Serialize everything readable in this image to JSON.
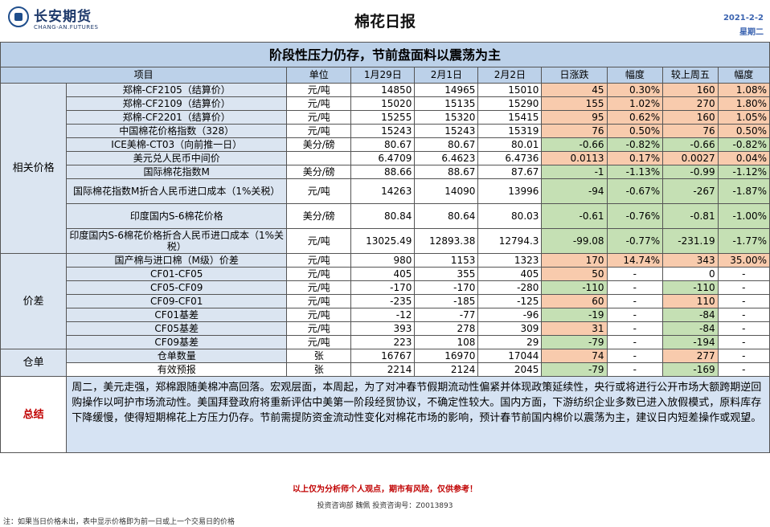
{
  "header": {
    "company_cn": "长安期货",
    "company_en": "CHANG-AN.FUTURES",
    "title": "棉花日报",
    "date": "2021-2-2",
    "weekday": "星期二"
  },
  "subtitle": "阶段性压力仍存，节前盘面料以震荡为主",
  "columns": [
    "项目",
    "单位",
    "1月29日",
    "2月1日",
    "2月2日",
    "日涨跌",
    "幅度",
    "较上周五",
    "幅度"
  ],
  "groups": {
    "related": "相关价格",
    "spread": "价差",
    "warehouse": "仓单",
    "summary": "总结"
  },
  "rows": [
    {
      "item": "郑棉-CF2105（结算价）",
      "unit": "元/吨",
      "d1": "14850",
      "d2": "14965",
      "d3": "15010",
      "chg": "45",
      "pct": "0.30%",
      "wk": "160",
      "wkpct": "1.08%"
    },
    {
      "item": "郑棉-CF2109（结算价）",
      "unit": "元/吨",
      "d1": "15020",
      "d2": "15135",
      "d3": "15290",
      "chg": "155",
      "pct": "1.02%",
      "wk": "270",
      "wkpct": "1.80%"
    },
    {
      "item": "郑棉-CF2201（结算价）",
      "unit": "元/吨",
      "d1": "15255",
      "d2": "15320",
      "d3": "15415",
      "chg": "95",
      "pct": "0.62%",
      "wk": "160",
      "wkpct": "1.05%"
    },
    {
      "item": "中国棉花价格指数（328）",
      "unit": "元/吨",
      "d1": "15243",
      "d2": "15243",
      "d3": "15319",
      "chg": "76",
      "pct": "0.50%",
      "wk": "76",
      "wkpct": "0.50%"
    },
    {
      "item": "ICE美棉-CT03（向前推一日）",
      "unit": "美分/磅",
      "d1": "80.67",
      "d2": "80.67",
      "d3": "80.01",
      "chg": "-0.66",
      "pct": "-0.82%",
      "wk": "-0.66",
      "wkpct": "-0.82%"
    },
    {
      "item": "美元兑人民币中间价",
      "unit": "",
      "d1": "6.4709",
      "d2": "6.4623",
      "d3": "6.4736",
      "chg": "0.0113",
      "pct": "0.17%",
      "wk": "0.0027",
      "wkpct": "0.04%"
    },
    {
      "item": "国际棉花指数M",
      "unit": "美分/磅",
      "d1": "88.66",
      "d2": "88.67",
      "d3": "87.67",
      "chg": "-1",
      "pct": "-1.13%",
      "wk": "-0.99",
      "wkpct": "-1.12%"
    },
    {
      "item": "国际棉花指数M折合人民币进口成本（1%关税）",
      "unit": "元/吨",
      "d1": "14263",
      "d2": "14090",
      "d3": "13996",
      "chg": "-94",
      "pct": "-0.67%",
      "wk": "-267",
      "wkpct": "-1.87%"
    },
    {
      "item": "印度国内S-6棉花价格",
      "unit": "美分/磅",
      "d1": "80.84",
      "d2": "80.64",
      "d3": "80.03",
      "chg": "-0.61",
      "pct": "-0.76%",
      "wk": "-0.81",
      "wkpct": "-1.00%"
    },
    {
      "item": "印度国内S-6棉花价格折合人民币进口成本（1%关税）",
      "unit": "元/吨",
      "d1": "13025.49",
      "d2": "12893.38",
      "d3": "12794.3",
      "chg": "-99.08",
      "pct": "-0.77%",
      "wk": "-231.19",
      "wkpct": "-1.77%"
    },
    {
      "item": "国产棉与进口棉（M级）价差",
      "unit": "元/吨",
      "d1": "980",
      "d2": "1153",
      "d3": "1323",
      "chg": "170",
      "pct": "14.74%",
      "wk": "343",
      "wkpct": "35.00%"
    },
    {
      "item": "CF01-CF05",
      "unit": "元/吨",
      "d1": "405",
      "d2": "355",
      "d3": "405",
      "chg": "50",
      "pct": "-",
      "wk": "0",
      "wkpct": "-"
    },
    {
      "item": "CF05-CF09",
      "unit": "元/吨",
      "d1": "-170",
      "d2": "-170",
      "d3": "-280",
      "chg": "-110",
      "pct": "-",
      "wk": "-110",
      "wkpct": "-"
    },
    {
      "item": "CF09-CF01",
      "unit": "元/吨",
      "d1": "-235",
      "d2": "-185",
      "d3": "-125",
      "chg": "60",
      "pct": "-",
      "wk": "110",
      "wkpct": "-"
    },
    {
      "item": "CF01基差",
      "unit": "元/吨",
      "d1": "-12",
      "d2": "-77",
      "d3": "-96",
      "chg": "-19",
      "pct": "-",
      "wk": "-84",
      "wkpct": "-"
    },
    {
      "item": "CF05基差",
      "unit": "元/吨",
      "d1": "393",
      "d2": "278",
      "d3": "309",
      "chg": "31",
      "pct": "-",
      "wk": "-84",
      "wkpct": "-"
    },
    {
      "item": "CF09基差",
      "unit": "元/吨",
      "d1": "223",
      "d2": "108",
      "d3": "29",
      "chg": "-79",
      "pct": "-",
      "wk": "-194",
      "wkpct": "-"
    },
    {
      "item": "仓单数量",
      "unit": "张",
      "d1": "16767",
      "d2": "16970",
      "d3": "17044",
      "chg": "74",
      "pct": "-",
      "wk": "277",
      "wkpct": "-"
    },
    {
      "item": "有效预报",
      "unit": "张",
      "d1": "2214",
      "d2": "2124",
      "d3": "2045",
      "chg": "-79",
      "pct": "-",
      "wk": "-169",
      "wkpct": "-"
    }
  ],
  "summary_text": "周二，美元走强，郑棉跟随美棉冲高回落。宏观层面，本周起，为了对冲春节假期流动性偏紧并体现政策延续性，央行或将进行公开市场大额跨期逆回购操作以呵护市场流动性。美国拜登政府将重新评估中美第一阶段经贸协议，不确定性较大。国内方面，下游纺织企业多数已进入放假模式，原料库存下降缓慢，使得短期棉花上方压力仍存。节前需提防资金流动性变化对棉花市场的影响，预计春节前国内棉价以震荡为主，建议日内短差操作或观望。",
  "disclaimer": "以上仅为分析师个人观点，期市有风险，仅供参考！",
  "contact": "投资咨询部 魏佩  投资咨询号：Z0013893",
  "note": "注：如果当日价格未出，表中显示价格即为前一日或上一个交易日的价格",
  "colors": {
    "header_blue": "#bcd1e9",
    "item_blue": "#dbe5f1",
    "up": "#f8cbad",
    "down": "#c5e0b4",
    "accent_red": "#c00000"
  }
}
